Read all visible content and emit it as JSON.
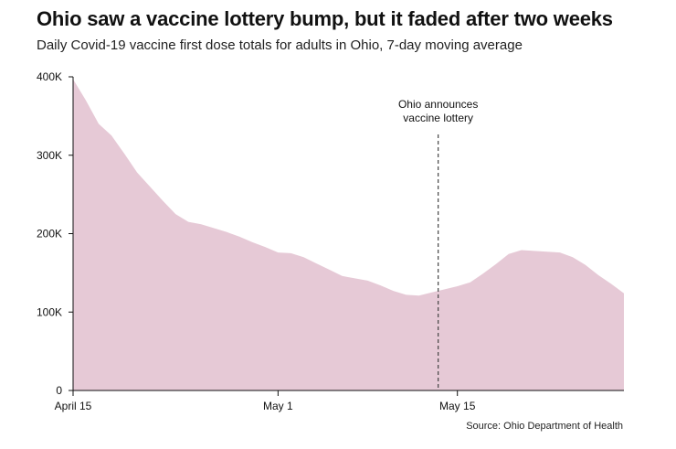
{
  "title": "Ohio saw a vaccine lottery bump, but it faded after two weeks",
  "subtitle": "Daily Covid-19 vaccine first dose totals for adults in Ohio, 7-day moving average",
  "source": "Source: Ohio Department of Health",
  "colors": {
    "area": "#e6c9d6",
    "axis": "#111111",
    "annotation": "#444444"
  },
  "chart_data": {
    "type": "area",
    "ylim": [
      0,
      400000
    ],
    "y_ticks": [
      {
        "value": 0,
        "label": "0"
      },
      {
        "value": 100000,
        "label": "100K"
      },
      {
        "value": 200000,
        "label": "200K"
      },
      {
        "value": 300000,
        "label": "300K"
      },
      {
        "value": 400000,
        "label": "400K"
      }
    ],
    "x_ticks": [
      {
        "day": 0,
        "label": "April 15"
      },
      {
        "day": 16,
        "label": "May 1"
      },
      {
        "day": 30,
        "label": "May 15"
      }
    ],
    "xlim": [
      0,
      43
    ],
    "grid": false,
    "annotation": {
      "day": 28.5,
      "lines": [
        "Ohio announces",
        "vaccine lottery"
      ]
    },
    "series": [
      {
        "x": [
          0,
          1,
          2,
          3,
          4,
          5,
          6,
          7,
          8,
          9,
          10,
          11,
          12,
          13,
          14,
          15,
          16,
          17,
          18,
          19,
          20,
          21,
          22,
          23,
          24,
          25,
          26,
          27,
          28,
          29,
          30,
          31,
          32,
          33,
          34,
          35,
          36,
          37,
          38,
          39,
          40,
          41,
          42,
          43
        ],
        "values": [
          397000,
          370000,
          340000,
          325000,
          302000,
          278000,
          260000,
          242000,
          225000,
          215000,
          212000,
          207000,
          202000,
          196000,
          189000,
          183000,
          176000,
          175000,
          170000,
          162000,
          154000,
          146000,
          143000,
          140000,
          134000,
          127000,
          122000,
          121000,
          125000,
          129000,
          133000,
          138000,
          149000,
          161000,
          174000,
          179000,
          178000,
          177000,
          176000,
          170000,
          160000,
          147000,
          136000,
          124000
        ]
      }
    ]
  }
}
